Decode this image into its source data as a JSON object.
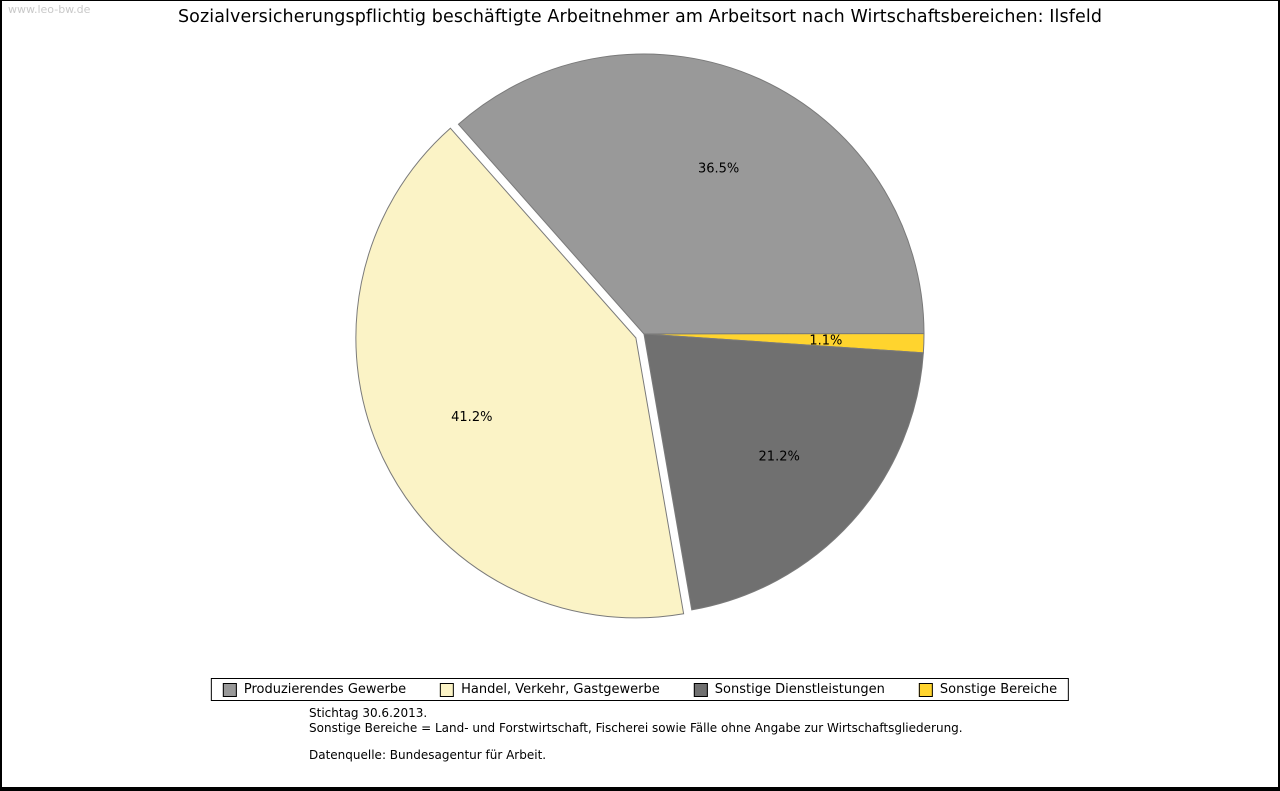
{
  "page": {
    "watermark": "www.leo-bw.de",
    "title": "Sozialversicherungspflichtig beschäftigte Arbeitnehmer am Arbeitsort nach Wirtschaftsbereichen: Ilsfeld"
  },
  "chart_data": {
    "type": "pie",
    "title": "Sozialversicherungspflichtig beschäftigte Arbeitnehmer am Arbeitsort nach Wirtschaftsbereichen: Ilsfeld",
    "unit": "%",
    "start_angle_deg": 131.5,
    "direction": "clockwise",
    "outline_color": "#7a7a7a",
    "label_color": "#000000",
    "slices": [
      {
        "label": "Produzierendes Gewerbe",
        "value": 36.5,
        "display": "36.5%",
        "color": "#999999",
        "exploded": false
      },
      {
        "label": "Sonstige Bereiche",
        "value": 1.1,
        "display": "1.1%",
        "color": "#ffd42e",
        "exploded": false
      },
      {
        "label": "Sonstige Dienstleistungen",
        "value": 21.2,
        "display": "21.2%",
        "color": "#707070",
        "exploded": false
      },
      {
        "label": "Handel, Verkehr, Gastgewerbe",
        "value": 41.2,
        "display": "41.2%",
        "color": "#fbf3c6",
        "exploded": true
      }
    ],
    "legend_position": "bottom"
  },
  "legend": {
    "items": [
      {
        "label": "Produzierendes Gewerbe",
        "color": "#999999"
      },
      {
        "label": "Handel, Verkehr, Gastgewerbe",
        "color": "#fbf3c6"
      },
      {
        "label": "Sonstige Dienstleistungen",
        "color": "#707070"
      },
      {
        "label": "Sonstige Bereiche",
        "color": "#ffd42e"
      }
    ]
  },
  "footnotes": {
    "line1": "Stichtag 30.6.2013.",
    "line2": "Sonstige Bereiche = Land- und Forstwirtschaft, Fischerei sowie Fälle ohne Angabe zur Wirtschaftsgliederung.",
    "line3": "Datenquelle: Bundesagentur für Arbeit."
  }
}
